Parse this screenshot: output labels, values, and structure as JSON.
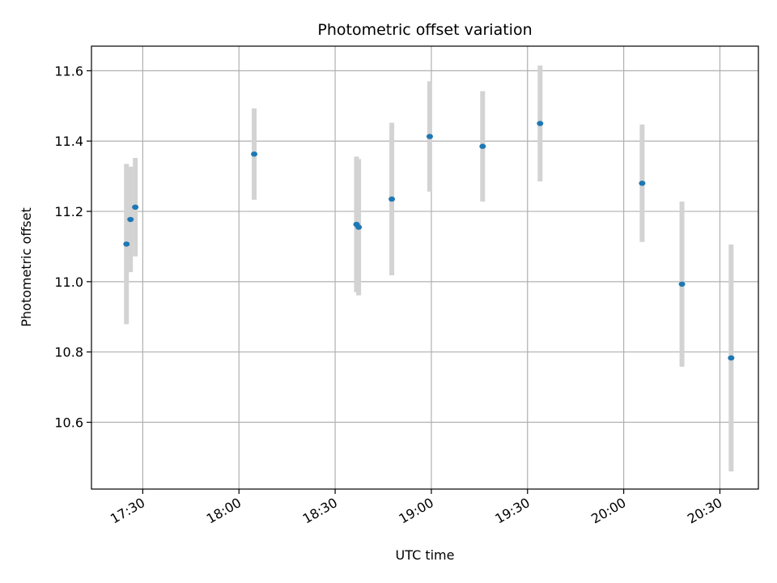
{
  "chart_data": {
    "type": "scatter",
    "title": "Photometric offset variation",
    "xlabel": "UTC time",
    "ylabel": "Photometric offset",
    "xlim": [
      "17:14",
      "20:42"
    ],
    "ylim": [
      10.41,
      11.67
    ],
    "x_ticks": [
      "17:30",
      "18:00",
      "18:30",
      "19:00",
      "19:30",
      "20:00",
      "20:30"
    ],
    "y_ticks": [
      "10.6",
      "10.8",
      "11.0",
      "11.2",
      "11.4",
      "11.6"
    ],
    "grid": true,
    "colors": {
      "point": "#1f77b4",
      "errorbar": "#d3d3d3",
      "grid": "#b0b0b0"
    },
    "points": [
      {
        "x": "17:24:55",
        "y": 11.107,
        "err": 0.228
      },
      {
        "x": "17:26:10",
        "y": 11.177,
        "err": 0.15
      },
      {
        "x": "17:27:40",
        "y": 11.212,
        "err": 0.14
      },
      {
        "x": "18:04:45",
        "y": 11.363,
        "err": 0.13
      },
      {
        "x": "18:36:40",
        "y": 11.163,
        "err": 0.193
      },
      {
        "x": "18:37:20",
        "y": 11.155,
        "err": 0.194
      },
      {
        "x": "18:47:40",
        "y": 11.235,
        "err": 0.217
      },
      {
        "x": "18:59:30",
        "y": 11.413,
        "err": 0.157
      },
      {
        "x": "19:16:00",
        "y": 11.385,
        "err": 0.157
      },
      {
        "x": "19:33:55",
        "y": 11.45,
        "err": 0.165
      },
      {
        "x": "20:05:45",
        "y": 11.28,
        "err": 0.167
      },
      {
        "x": "20:18:10",
        "y": 10.993,
        "err": 0.235
      },
      {
        "x": "20:33:30",
        "y": 10.783,
        "err": 0.323
      }
    ]
  }
}
